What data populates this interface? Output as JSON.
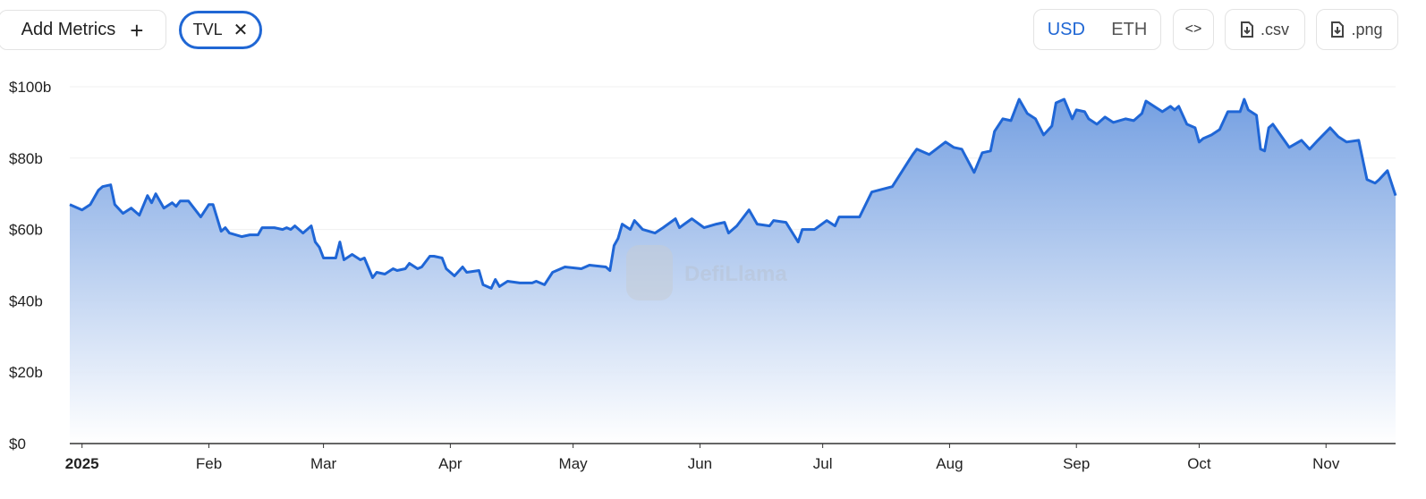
{
  "toolbar": {
    "add_metrics_label": "Add Metrics",
    "add_icon": "plus-icon",
    "active_metric": "TVL",
    "remove_icon": "close-icon",
    "currency_options": [
      "USD",
      "ETH"
    ],
    "currency_selected": "USD",
    "embed_icon": "code-brackets-icon",
    "csv_label": ".csv",
    "png_label": ".png",
    "download_icon": "file-download-icon"
  },
  "watermark": "DefiLlama",
  "colors": {
    "accent": "#2067d4",
    "line": "#1f66d6",
    "area_top": "#6e9be0",
    "area_bottom": "#ffffff"
  },
  "chart_data": {
    "type": "area",
    "title": "",
    "xlabel": "",
    "ylabel": "",
    "series_label": "TVL",
    "x_range": [
      "2024-12-29",
      "2025-11-18"
    ],
    "ylim": [
      0,
      100
    ],
    "y_unit": "USD billions",
    "y_ticks": [
      "$0",
      "$20b",
      "$40b",
      "$60b",
      "$80b",
      "$100b"
    ],
    "x_ticks": [
      {
        "date": "2025-01-01",
        "label": "2025",
        "bold": true
      },
      {
        "date": "2025-02-01",
        "label": "Feb"
      },
      {
        "date": "2025-03-01",
        "label": "Mar"
      },
      {
        "date": "2025-04-01",
        "label": "Apr"
      },
      {
        "date": "2025-05-01",
        "label": "May"
      },
      {
        "date": "2025-06-01",
        "label": "Jun"
      },
      {
        "date": "2025-07-01",
        "label": "Jul"
      },
      {
        "date": "2025-08-01",
        "label": "Aug"
      },
      {
        "date": "2025-09-01",
        "label": "Sep"
      },
      {
        "date": "2025-10-01",
        "label": "Oct"
      },
      {
        "date": "2025-11-01",
        "label": "Nov"
      }
    ],
    "grid": true,
    "points": [
      [
        "2024-12-29",
        67
      ],
      [
        "2025-01-01",
        65.5
      ],
      [
        "2025-01-03",
        67
      ],
      [
        "2025-01-05",
        71
      ],
      [
        "2025-01-06",
        72
      ],
      [
        "2025-01-08",
        72.5
      ],
      [
        "2025-01-09",
        67
      ],
      [
        "2025-01-11",
        64.5
      ],
      [
        "2025-01-13",
        66
      ],
      [
        "2025-01-15",
        64
      ],
      [
        "2025-01-17",
        69.5
      ],
      [
        "2025-01-18",
        67.5
      ],
      [
        "2025-01-19",
        70
      ],
      [
        "2025-01-21",
        66
      ],
      [
        "2025-01-23",
        67.5
      ],
      [
        "2025-01-24",
        66.5
      ],
      [
        "2025-01-25",
        68
      ],
      [
        "2025-01-27",
        68
      ],
      [
        "2025-01-30",
        63.5
      ],
      [
        "2025-02-01",
        67
      ],
      [
        "2025-02-02",
        67
      ],
      [
        "2025-02-04",
        59.5
      ],
      [
        "2025-02-05",
        60.5
      ],
      [
        "2025-02-06",
        59
      ],
      [
        "2025-02-09",
        58
      ],
      [
        "2025-02-11",
        58.5
      ],
      [
        "2025-02-13",
        58.5
      ],
      [
        "2025-02-14",
        60.5
      ],
      [
        "2025-02-17",
        60.5
      ],
      [
        "2025-02-19",
        60
      ],
      [
        "2025-02-20",
        60.5
      ],
      [
        "2025-02-21",
        60
      ],
      [
        "2025-02-22",
        61
      ],
      [
        "2025-02-24",
        59
      ],
      [
        "2025-02-26",
        61
      ],
      [
        "2025-02-27",
        56.5
      ],
      [
        "2025-02-28",
        55
      ],
      [
        "2025-03-01",
        52
      ],
      [
        "2025-03-04",
        52
      ],
      [
        "2025-03-05",
        56.5
      ],
      [
        "2025-03-06",
        51.5
      ],
      [
        "2025-03-08",
        53
      ],
      [
        "2025-03-10",
        51.5
      ],
      [
        "2025-03-11",
        52
      ],
      [
        "2025-03-13",
        46.5
      ],
      [
        "2025-03-14",
        48
      ],
      [
        "2025-03-16",
        47.5
      ],
      [
        "2025-03-18",
        49
      ],
      [
        "2025-03-19",
        48.5
      ],
      [
        "2025-03-21",
        49
      ],
      [
        "2025-03-22",
        50.5
      ],
      [
        "2025-03-24",
        49
      ],
      [
        "2025-03-25",
        49.5
      ],
      [
        "2025-03-27",
        52.5
      ],
      [
        "2025-03-28",
        52.5
      ],
      [
        "2025-03-30",
        52
      ],
      [
        "2025-03-31",
        49
      ],
      [
        "2025-04-02",
        47
      ],
      [
        "2025-04-04",
        49.5
      ],
      [
        "2025-04-05",
        48
      ],
      [
        "2025-04-08",
        48.5
      ],
      [
        "2025-04-09",
        44.5
      ],
      [
        "2025-04-11",
        43.5
      ],
      [
        "2025-04-12",
        46
      ],
      [
        "2025-04-13",
        44
      ],
      [
        "2025-04-15",
        45.5
      ],
      [
        "2025-04-18",
        45
      ],
      [
        "2025-04-21",
        45
      ],
      [
        "2025-04-22",
        45.5
      ],
      [
        "2025-04-24",
        44.5
      ],
      [
        "2025-04-26",
        48
      ],
      [
        "2025-04-29",
        49.5
      ],
      [
        "2025-05-03",
        49
      ],
      [
        "2025-05-05",
        50
      ],
      [
        "2025-05-09",
        49.5
      ],
      [
        "2025-05-10",
        48.5
      ],
      [
        "2025-05-11",
        55.5
      ],
      [
        "2025-05-12",
        57.5
      ],
      [
        "2025-05-13",
        61.5
      ],
      [
        "2025-05-15",
        60
      ],
      [
        "2025-05-16",
        62.5
      ],
      [
        "2025-05-18",
        60
      ],
      [
        "2025-05-21",
        59
      ],
      [
        "2025-05-23",
        60.5
      ],
      [
        "2025-05-26",
        63
      ],
      [
        "2025-05-27",
        60.5
      ],
      [
        "2025-05-30",
        63
      ],
      [
        "2025-06-02",
        60.5
      ],
      [
        "2025-06-05",
        61.5
      ],
      [
        "2025-06-07",
        62
      ],
      [
        "2025-06-08",
        59
      ],
      [
        "2025-06-10",
        61
      ],
      [
        "2025-06-13",
        65.5
      ],
      [
        "2025-06-15",
        61.5
      ],
      [
        "2025-06-18",
        61
      ],
      [
        "2025-06-19",
        62.5
      ],
      [
        "2025-06-22",
        62
      ],
      [
        "2025-06-25",
        56.5
      ],
      [
        "2025-06-26",
        60
      ],
      [
        "2025-06-29",
        60
      ],
      [
        "2025-07-02",
        62.5
      ],
      [
        "2025-07-04",
        61
      ],
      [
        "2025-07-05",
        63.5
      ],
      [
        "2025-07-10",
        63.5
      ],
      [
        "2025-07-13",
        70.5
      ],
      [
        "2025-07-18",
        72
      ],
      [
        "2025-07-23",
        81
      ],
      [
        "2025-07-24",
        82.5
      ],
      [
        "2025-07-27",
        81
      ],
      [
        "2025-07-31",
        84.5
      ],
      [
        "2025-08-02",
        83
      ],
      [
        "2025-08-04",
        82.5
      ],
      [
        "2025-08-07",
        76
      ],
      [
        "2025-08-09",
        81.5
      ],
      [
        "2025-08-11",
        82
      ],
      [
        "2025-08-12",
        87.5
      ],
      [
        "2025-08-14",
        91
      ],
      [
        "2025-08-16",
        90.5
      ],
      [
        "2025-08-18",
        96.5
      ],
      [
        "2025-08-20",
        92.5
      ],
      [
        "2025-08-22",
        91
      ],
      [
        "2025-08-24",
        86.5
      ],
      [
        "2025-08-26",
        89
      ],
      [
        "2025-08-27",
        95.5
      ],
      [
        "2025-08-29",
        96.5
      ],
      [
        "2025-08-31",
        91
      ],
      [
        "2025-09-01",
        93.5
      ],
      [
        "2025-09-03",
        93
      ],
      [
        "2025-09-04",
        91
      ],
      [
        "2025-09-06",
        89.5
      ],
      [
        "2025-09-08",
        91.5
      ],
      [
        "2025-09-10",
        90
      ],
      [
        "2025-09-13",
        91
      ],
      [
        "2025-09-15",
        90.5
      ],
      [
        "2025-09-17",
        92.5
      ],
      [
        "2025-09-18",
        96
      ],
      [
        "2025-09-22",
        93
      ],
      [
        "2025-09-24",
        94.5
      ],
      [
        "2025-09-25",
        93.5
      ],
      [
        "2025-09-26",
        94.5
      ],
      [
        "2025-09-28",
        89.5
      ],
      [
        "2025-09-30",
        88.5
      ],
      [
        "2025-10-01",
        84.5
      ],
      [
        "2025-10-02",
        85.5
      ],
      [
        "2025-10-04",
        86.5
      ],
      [
        "2025-10-06",
        88
      ],
      [
        "2025-10-08",
        93
      ],
      [
        "2025-10-11",
        93
      ],
      [
        "2025-10-12",
        96.5
      ],
      [
        "2025-10-13",
        93.5
      ],
      [
        "2025-10-15",
        92
      ],
      [
        "2025-10-16",
        82.5
      ],
      [
        "2025-10-17",
        82
      ],
      [
        "2025-10-18",
        88.5
      ],
      [
        "2025-10-19",
        89.5
      ],
      [
        "2025-10-23",
        83
      ],
      [
        "2025-10-26",
        85
      ],
      [
        "2025-10-28",
        82.5
      ],
      [
        "2025-10-30",
        85
      ],
      [
        "2025-11-02",
        88.5
      ],
      [
        "2025-11-04",
        86
      ],
      [
        "2025-11-06",
        84.5
      ],
      [
        "2025-11-09",
        85
      ],
      [
        "2025-11-11",
        74
      ],
      [
        "2025-11-13",
        73
      ],
      [
        "2025-11-14",
        74
      ],
      [
        "2025-11-16",
        76.5
      ],
      [
        "2025-11-17",
        73
      ],
      [
        "2025-11-18",
        69.5
      ]
    ]
  }
}
